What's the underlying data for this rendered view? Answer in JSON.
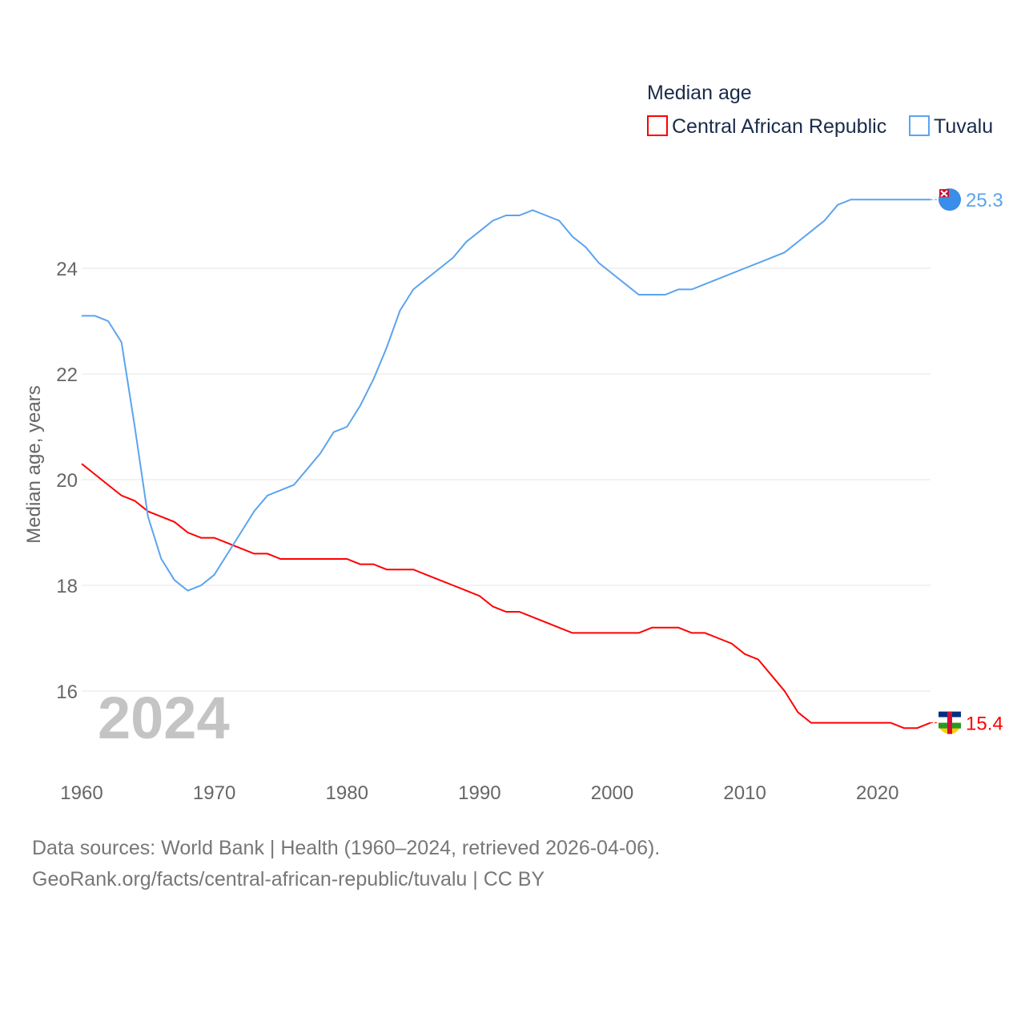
{
  "chart_data": {
    "type": "line",
    "legend_title": "Median age",
    "legend_placement": "top-right",
    "ylabel": "Median age, years",
    "xlabel": "",
    "xlim": [
      1960,
      2024
    ],
    "ylim": [
      14.9,
      25.8
    ],
    "x_ticks": [
      1960,
      1970,
      1980,
      1990,
      2000,
      2010,
      2020
    ],
    "y_ticks": [
      16,
      18,
      20,
      22,
      24
    ],
    "grid": true,
    "year_overlay": "2024",
    "x": [
      1960,
      1961,
      1962,
      1963,
      1964,
      1965,
      1966,
      1967,
      1968,
      1969,
      1970,
      1971,
      1972,
      1973,
      1974,
      1975,
      1976,
      1977,
      1978,
      1979,
      1980,
      1981,
      1982,
      1983,
      1984,
      1985,
      1986,
      1987,
      1988,
      1989,
      1990,
      1991,
      1992,
      1993,
      1994,
      1995,
      1996,
      1997,
      1998,
      1999,
      2000,
      2001,
      2002,
      2003,
      2004,
      2005,
      2006,
      2007,
      2008,
      2009,
      2010,
      2011,
      2012,
      2013,
      2014,
      2015,
      2016,
      2017,
      2018,
      2019,
      2020,
      2021,
      2022,
      2023,
      2024
    ],
    "series": [
      {
        "name": "Central African Republic",
        "color": "#ff0000",
        "end_label": "15.4",
        "values": [
          20.3,
          20.1,
          19.9,
          19.7,
          19.6,
          19.4,
          19.3,
          19.2,
          19.0,
          18.9,
          18.9,
          18.8,
          18.7,
          18.6,
          18.6,
          18.5,
          18.5,
          18.5,
          18.5,
          18.5,
          18.5,
          18.4,
          18.4,
          18.3,
          18.3,
          18.3,
          18.2,
          18.1,
          18.0,
          17.9,
          17.8,
          17.6,
          17.5,
          17.5,
          17.4,
          17.3,
          17.2,
          17.1,
          17.1,
          17.1,
          17.1,
          17.1,
          17.1,
          17.2,
          17.2,
          17.2,
          17.1,
          17.1,
          17.0,
          16.9,
          16.7,
          16.6,
          16.3,
          16.0,
          15.6,
          15.4,
          15.4,
          15.4,
          15.4,
          15.4,
          15.4,
          15.4,
          15.3,
          15.3,
          15.4
        ]
      },
      {
        "name": "Tuvalu",
        "color": "#5ba4ef",
        "end_label": "25.3",
        "values": [
          23.1,
          23.1,
          23.0,
          22.6,
          21.0,
          19.3,
          18.5,
          18.1,
          17.9,
          18.0,
          18.2,
          18.6,
          19.0,
          19.4,
          19.7,
          19.8,
          19.9,
          20.2,
          20.5,
          20.9,
          21.0,
          21.4,
          21.9,
          22.5,
          23.2,
          23.6,
          23.8,
          24.0,
          24.2,
          24.5,
          24.7,
          24.9,
          25.0,
          25.0,
          25.1,
          25.0,
          24.9,
          24.6,
          24.4,
          24.1,
          23.9,
          23.7,
          23.5,
          23.5,
          23.5,
          23.6,
          23.6,
          23.7,
          23.8,
          23.9,
          24.0,
          24.1,
          24.2,
          24.3,
          24.5,
          24.7,
          24.9,
          25.2,
          25.3,
          25.3,
          25.3,
          25.3,
          25.3,
          25.3,
          25.3
        ]
      }
    ]
  },
  "footer": {
    "line1": "Data sources: World Bank | Health (1960–2024, retrieved 2026-04-06).",
    "line2": "GeoRank.org/facts/central-african-republic/tuvalu | CC BY"
  }
}
